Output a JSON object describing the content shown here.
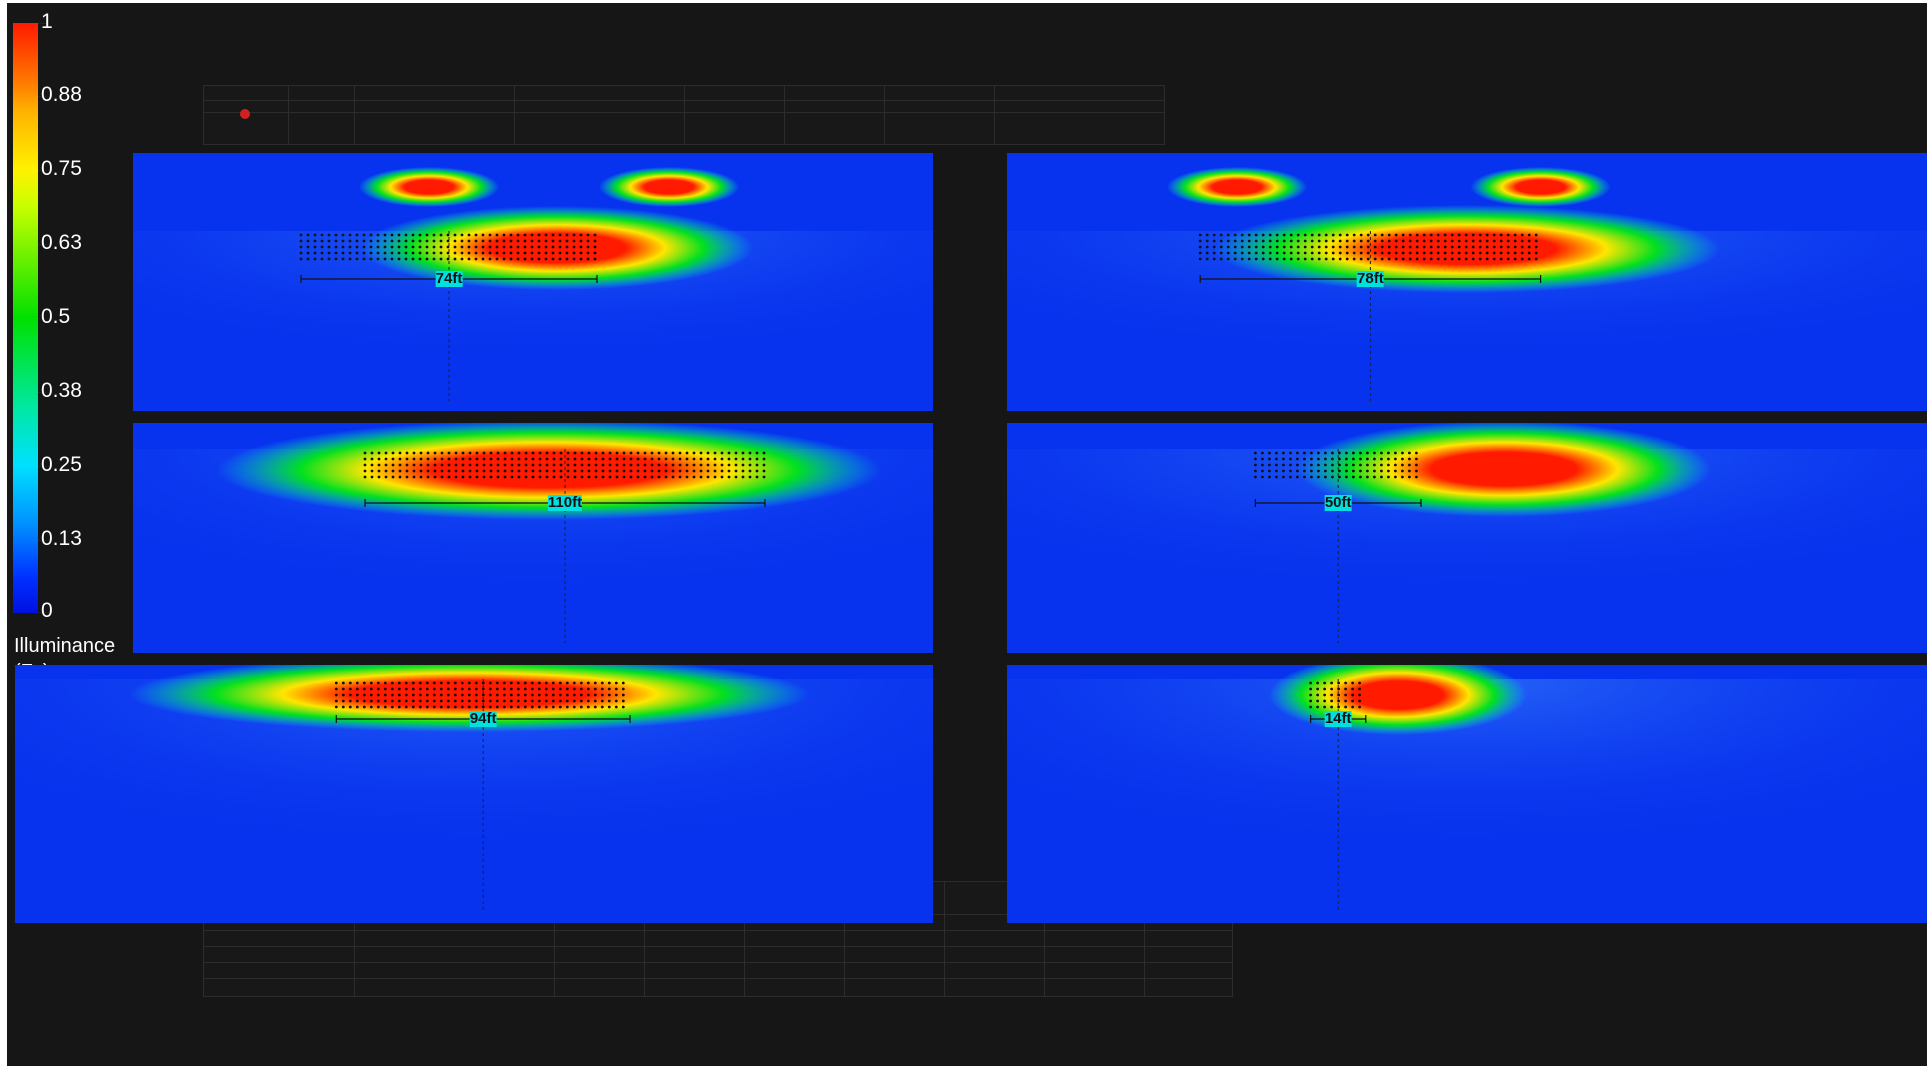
{
  "legend": {
    "ticks": [
      "1",
      "0.88",
      "0.75",
      "0.63",
      "0.5",
      "0.38",
      "0.25",
      "0.13",
      "0"
    ],
    "title_line1": "Illuminance",
    "title_line2": "(Fc)",
    "gradient_stops": [
      "#ff1a00",
      "#ff7a00",
      "#fff200",
      "#00e000",
      "#00e0ff",
      "#0030ff"
    ]
  },
  "panels": [
    {
      "name": "panel-top-left",
      "dimension": "74ft"
    },
    {
      "name": "panel-top-right",
      "dimension": "78ft"
    },
    {
      "name": "panel-mid-left",
      "dimension": "110ft"
    },
    {
      "name": "panel-mid-right",
      "dimension": "50ft"
    },
    {
      "name": "panel-bottom-left",
      "dimension": "94ft"
    },
    {
      "name": "panel-bottom-right",
      "dimension": "14ft"
    }
  ],
  "colors": {
    "background": "#161616",
    "floor_blue": "#0833ee",
    "hot": "#ff1a00",
    "warm": "#ffe600",
    "mid": "#00e020",
    "cool": "#00e0e0"
  }
}
